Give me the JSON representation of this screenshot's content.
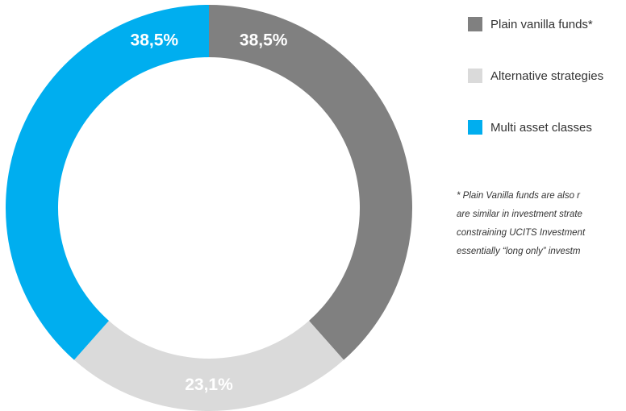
{
  "chart_data": {
    "type": "pie",
    "donut": true,
    "title": "",
    "slices": [
      {
        "label": "Plain vanilla funds*",
        "value": 38.5,
        "display": "38,5%",
        "color": "#808080"
      },
      {
        "label": "Alternative strategies",
        "value": 23.1,
        "display": "23,1%",
        "color": "#dadada"
      },
      {
        "label": "Multi asset classes",
        "value": 38.5,
        "display": "38,5%",
        "color": "#00aeef"
      }
    ],
    "legend_position": "right"
  },
  "footnote": {
    "lines": [
      "* Plain Vanilla funds are also r",
      "are similar in investment strate",
      "constraining UCITS Investment",
      "essentially “long only” investm"
    ]
  }
}
